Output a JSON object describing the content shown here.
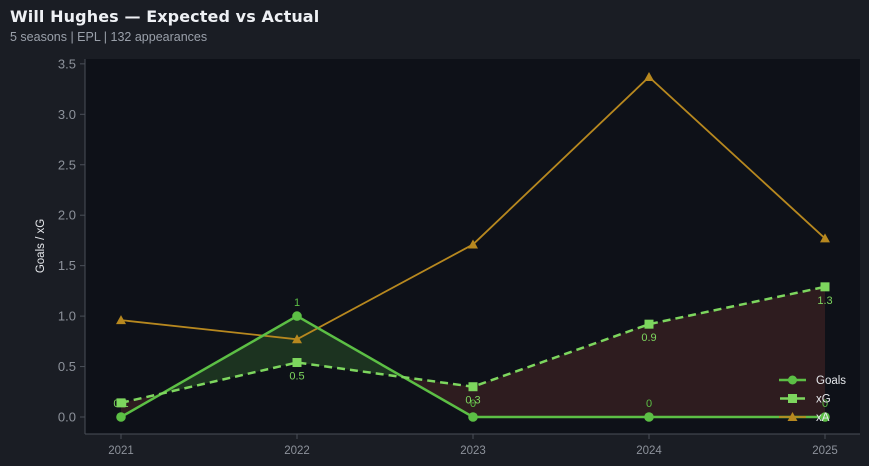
{
  "header": {
    "title": "Will Hughes — Expected vs Actual",
    "subtitle": "5 seasons | EPL | 132 appearances"
  },
  "colors": {
    "background": "#1a1d24",
    "plot_background": "#0e1118",
    "goals": "#5cbf45",
    "xg": "#7dd65e",
    "xa": "#b7881f",
    "overperform_fill": "#1c3320",
    "underperform_fill": "#2e1c1f",
    "axis": "#4a4f58",
    "tick_text": "#8d929b"
  },
  "chart_data": {
    "type": "line",
    "title": "Will Hughes — Expected vs Actual",
    "subtitle": "5 seasons | EPL | 132 appearances",
    "xlabel": "",
    "ylabel": "Goals / xG",
    "x": [
      "2021",
      "2022",
      "2023",
      "2024",
      "2025"
    ],
    "ylim": [
      -0.12,
      3.55
    ],
    "yticks": [
      "0.0",
      "0.5",
      "1.0",
      "1.5",
      "2.0",
      "2.5",
      "3.0",
      "3.5"
    ],
    "grid": false,
    "legend_position": "lower right",
    "series": [
      {
        "name": "Goals",
        "values": [
          0,
          1,
          0,
          0,
          0
        ],
        "labels": [
          "0",
          "1",
          "0",
          "0",
          "0"
        ],
        "marker": "circle",
        "style": "solid"
      },
      {
        "name": "xG",
        "values": [
          0.14,
          0.54,
          0.3,
          0.92,
          1.29
        ],
        "labels": [
          "0.1",
          "0.5",
          "0.3",
          "0.9",
          "1.3"
        ],
        "marker": "square",
        "style": "dashed"
      },
      {
        "name": "xA",
        "values": [
          0.96,
          0.77,
          1.71,
          3.37,
          1.77
        ],
        "marker": "triangle",
        "style": "solid"
      }
    ],
    "annotations": [
      "Green fill where Goals > xG",
      "Red fill where Goals < xG"
    ]
  },
  "legend": {
    "items": [
      {
        "label": "Goals"
      },
      {
        "label": "xG"
      },
      {
        "label": "xA"
      }
    ]
  }
}
